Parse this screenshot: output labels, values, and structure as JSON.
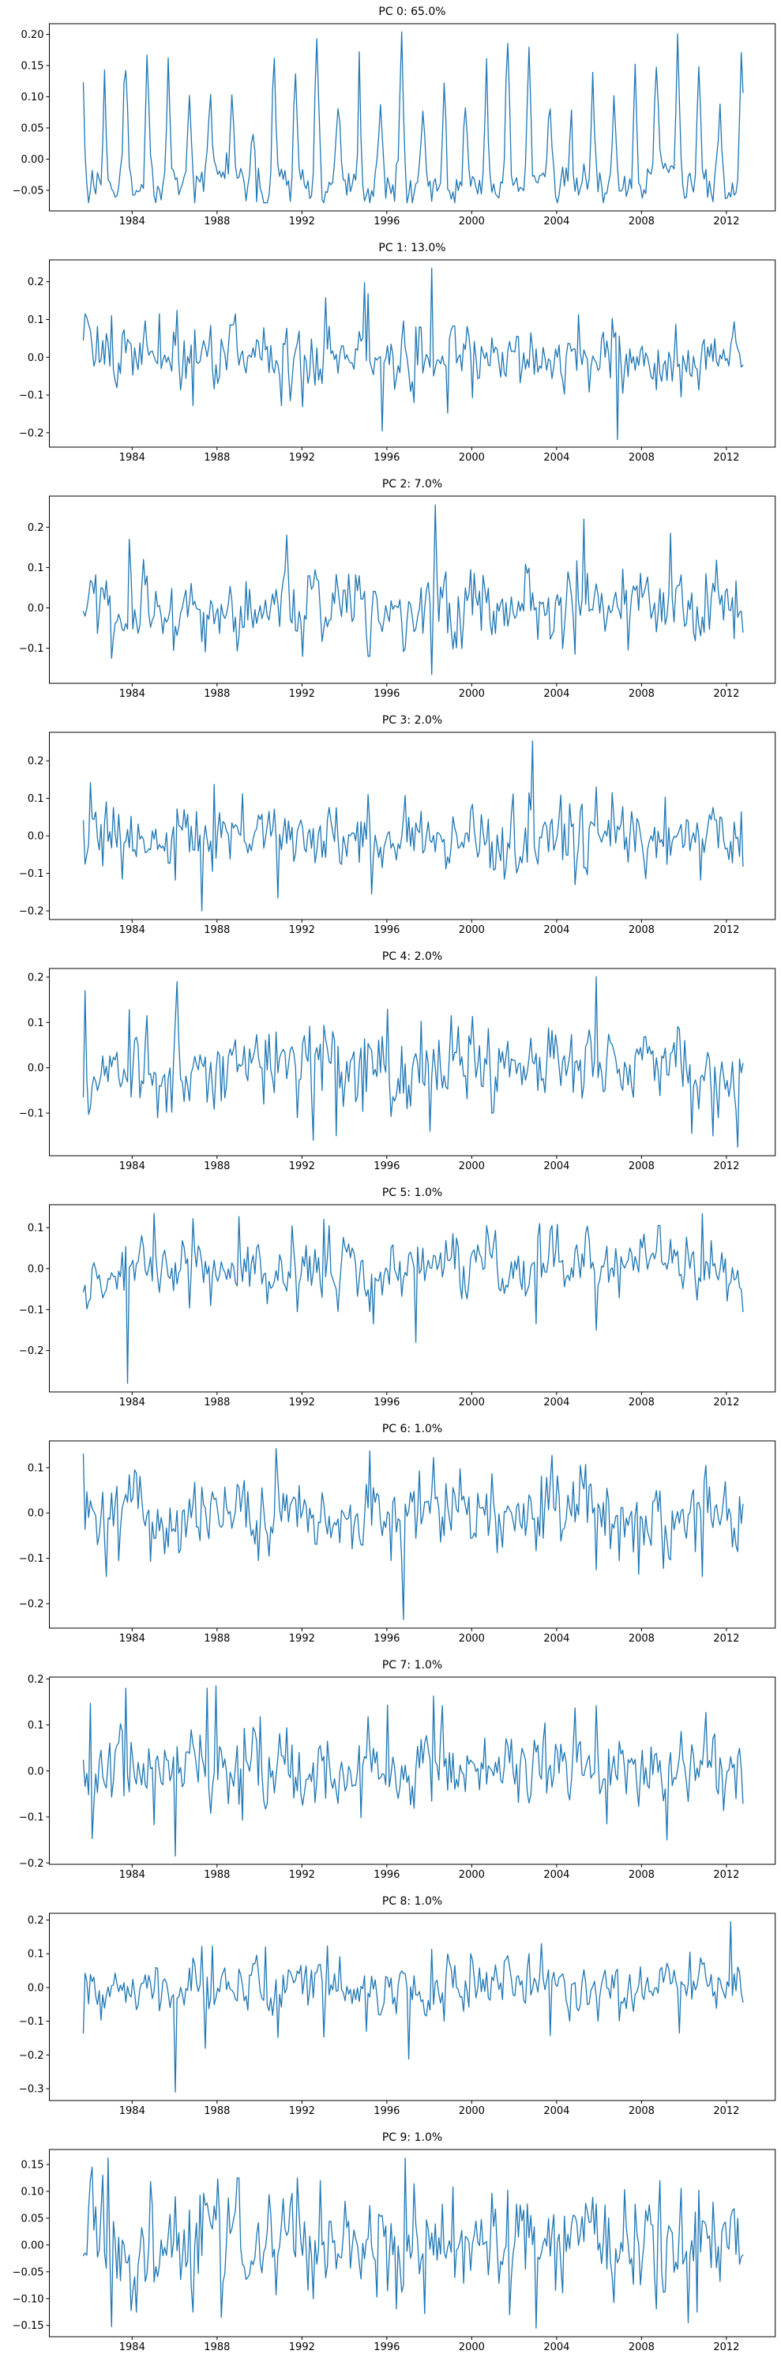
{
  "figure": {
    "background": "#ffffff",
    "line_color": "#1f77b4",
    "x_tick_labels": [
      "1984",
      "1988",
      "1992",
      "1996",
      "2000",
      "2004",
      "2008",
      "2012"
    ]
  },
  "chart_data": [
    {
      "type": "line",
      "title": "PC 0: 65.0%",
      "series_name": "PC 0",
      "explained_variance_pct": 65.0,
      "line_color": "#1f77b4",
      "x_start": 1981.7,
      "x_end": 2012.75,
      "xlim": [
        1980.1,
        2014.3
      ],
      "ylim": [
        -0.083,
        0.217
      ],
      "x_ticks": [
        1984,
        1988,
        1992,
        1996,
        2000,
        2004,
        2008,
        2012
      ],
      "y_ticks": [
        0.2,
        0.15,
        0.1,
        0.05,
        0.0,
        -0.05
      ],
      "y_tick_decimals": 2,
      "generator": {
        "kind": "seasonal",
        "seed": 7,
        "base": -0.045,
        "amp_min": 0.09,
        "amp_max": 0.25,
        "peak_phase": 0.7,
        "peak_sharpness": 4,
        "noise_std": 0.018,
        "noise_rho": 0.35,
        "clip_low": -0.07,
        "clip_high": 0.205,
        "spikes": [
          {
            "x": 1996.7,
            "y": 0.204
          },
          {
            "x": 1994.7,
            "y": 0.172
          },
          {
            "x": 1985.7,
            "y": 0.162
          },
          {
            "x": 2010.7,
            "y": 0.148
          },
          {
            "x": 1982.7,
            "y": 0.143
          },
          {
            "x": 2005.7,
            "y": 0.139
          },
          {
            "x": 1983.7,
            "y": 0.142
          }
        ]
      }
    },
    {
      "type": "line",
      "title": "PC 1: 13.0%",
      "series_name": "PC 1",
      "explained_variance_pct": 13.0,
      "line_color": "#1f77b4",
      "x_start": 1981.7,
      "x_end": 2012.75,
      "xlim": [
        1980.1,
        2014.3
      ],
      "ylim": [
        -0.238,
        0.258
      ],
      "x_ticks": [
        1984,
        1988,
        1992,
        1996,
        2000,
        2004,
        2008,
        2012
      ],
      "y_ticks": [
        0.2,
        0.1,
        0.0,
        -0.1,
        -0.2
      ],
      "y_tick_decimals": 1,
      "generator": {
        "kind": "noise",
        "seed": 11,
        "noise_std": 0.04,
        "noise_rho": 0.3,
        "clip_low": -0.115,
        "clip_high": 0.115,
        "spikes": [
          {
            "x": 1983.0,
            "y": 0.11
          },
          {
            "x": 1986.1,
            "y": 0.124
          },
          {
            "x": 1991.05,
            "y": 0.193
          },
          {
            "x": 1993.1,
            "y": 0.158
          },
          {
            "x": 1994.95,
            "y": 0.198
          },
          {
            "x": 1995.15,
            "y": 0.168
          },
          {
            "x": 1998.1,
            "y": 0.236
          },
          {
            "x": 2005.0,
            "y": 0.113
          },
          {
            "x": 2006.6,
            "y": 0.103
          },
          {
            "x": 1986.9,
            "y": -0.128
          },
          {
            "x": 1991.0,
            "y": -0.128
          },
          {
            "x": 1992.05,
            "y": -0.131
          },
          {
            "x": 1995.8,
            "y": -0.195
          },
          {
            "x": 1997.3,
            "y": -0.12
          },
          {
            "x": 1998.9,
            "y": -0.148
          },
          {
            "x": 2000.0,
            "y": -0.107
          },
          {
            "x": 2006.9,
            "y": -0.218
          },
          {
            "x": 2009.9,
            "y": -0.105
          }
        ]
      }
    },
    {
      "type": "line",
      "title": "PC 2: 7.0%",
      "series_name": "PC 2",
      "explained_variance_pct": 7.0,
      "line_color": "#1f77b4",
      "x_start": 1981.7,
      "x_end": 2012.75,
      "xlim": [
        1980.1,
        2014.3
      ],
      "ylim": [
        -0.187,
        0.277
      ],
      "x_ticks": [
        1984,
        1988,
        1992,
        1996,
        2000,
        2004,
        2008,
        2012
      ],
      "y_ticks": [
        0.2,
        0.1,
        0.0,
        -0.1
      ],
      "y_tick_decimals": 1,
      "generator": {
        "kind": "noise",
        "seed": 12,
        "noise_std": 0.045,
        "noise_rho": 0.3,
        "clip_low": -0.12,
        "clip_high": 0.12,
        "spikes": [
          {
            "x": 1983.9,
            "y": 0.17
          },
          {
            "x": 1991.3,
            "y": 0.18
          },
          {
            "x": 1998.3,
            "y": 0.255
          },
          {
            "x": 2005.3,
            "y": 0.22
          },
          {
            "x": 2009.4,
            "y": 0.185
          },
          {
            "x": 2011.5,
            "y": 0.118
          },
          {
            "x": 1983.0,
            "y": -0.125
          },
          {
            "x": 1992.0,
            "y": -0.12
          },
          {
            "x": 1998.15,
            "y": -0.165
          },
          {
            "x": 2004.9,
            "y": -0.115
          }
        ]
      }
    },
    {
      "type": "line",
      "title": "PC 3: 2.0%",
      "series_name": "PC 3",
      "explained_variance_pct": 2.0,
      "line_color": "#1f77b4",
      "x_start": 1981.7,
      "x_end": 2012.75,
      "xlim": [
        1980.1,
        2014.3
      ],
      "ylim": [
        -0.223,
        0.276
      ],
      "x_ticks": [
        1984,
        1988,
        1992,
        1996,
        2000,
        2004,
        2008,
        2012
      ],
      "y_ticks": [
        0.2,
        0.1,
        0.0,
        -0.1,
        -0.2
      ],
      "y_tick_decimals": 1,
      "generator": {
        "kind": "noise",
        "seed": 13,
        "noise_std": 0.045,
        "noise_rho": 0.25,
        "clip_low": -0.115,
        "clip_high": 0.115,
        "spikes": [
          {
            "x": 1982.0,
            "y": 0.142
          },
          {
            "x": 1987.9,
            "y": 0.137
          },
          {
            "x": 1989.2,
            "y": 0.112
          },
          {
            "x": 1995.1,
            "y": 0.11
          },
          {
            "x": 1996.9,
            "y": 0.108
          },
          {
            "x": 2002.9,
            "y": 0.253
          },
          {
            "x": 2005.9,
            "y": 0.13
          },
          {
            "x": 2009.1,
            "y": 0.103
          },
          {
            "x": 1987.3,
            "y": -0.2
          },
          {
            "x": 1990.9,
            "y": -0.165
          },
          {
            "x": 1995.3,
            "y": -0.155
          },
          {
            "x": 2004.9,
            "y": -0.13
          },
          {
            "x": 1983.5,
            "y": -0.115
          },
          {
            "x": 1986.0,
            "y": -0.118
          },
          {
            "x": 2010.8,
            "y": -0.118
          }
        ]
      }
    },
    {
      "type": "line",
      "title": "PC 4: 2.0%",
      "series_name": "PC 4",
      "explained_variance_pct": 2.0,
      "line_color": "#1f77b4",
      "x_start": 1981.7,
      "x_end": 2012.75,
      "xlim": [
        1980.1,
        2014.3
      ],
      "ylim": [
        -0.194,
        0.219
      ],
      "x_ticks": [
        1984,
        1988,
        1992,
        1996,
        2000,
        2004,
        2008,
        2012
      ],
      "y_ticks": [
        0.2,
        0.1,
        0.0,
        -0.1
      ],
      "y_tick_decimals": 1,
      "generator": {
        "kind": "noise",
        "seed": 14,
        "noise_std": 0.045,
        "noise_rho": 0.3,
        "clip_low": -0.11,
        "clip_high": 0.11,
        "spikes": [
          {
            "x": 1981.75,
            "y": 0.17
          },
          {
            "x": 1983.9,
            "y": 0.128
          },
          {
            "x": 1984.7,
            "y": 0.115
          },
          {
            "x": 1986.1,
            "y": 0.19
          },
          {
            "x": 1996.0,
            "y": 0.129
          },
          {
            "x": 1999.0,
            "y": 0.115
          },
          {
            "x": 2000.0,
            "y": 0.113
          },
          {
            "x": 2005.9,
            "y": 0.201
          },
          {
            "x": 1992.5,
            "y": -0.16
          },
          {
            "x": 1993.6,
            "y": -0.15
          },
          {
            "x": 1998.0,
            "y": -0.14
          },
          {
            "x": 2010.4,
            "y": -0.145
          },
          {
            "x": 2011.4,
            "y": -0.15
          },
          {
            "x": 2012.5,
            "y": -0.175
          }
        ]
      }
    },
    {
      "type": "line",
      "title": "PC 5: 1.0%",
      "series_name": "PC 5",
      "explained_variance_pct": 1.0,
      "line_color": "#1f77b4",
      "x_start": 1981.7,
      "x_end": 2012.75,
      "xlim": [
        1980.1,
        2014.3
      ],
      "ylim": [
        -0.301,
        0.156
      ],
      "x_ticks": [
        1984,
        1988,
        1992,
        1996,
        2000,
        2004,
        2008,
        2012
      ],
      "y_ticks": [
        0.1,
        0.0,
        -0.1,
        -0.2
      ],
      "y_tick_decimals": 1,
      "generator": {
        "kind": "noise",
        "seed": 15,
        "noise_std": 0.042,
        "noise_rho": 0.35,
        "clip_low": -0.105,
        "clip_high": 0.105,
        "spikes": [
          {
            "x": 1983.8,
            "y": -0.28
          },
          {
            "x": 1997.4,
            "y": -0.18
          },
          {
            "x": 2005.9,
            "y": -0.15
          },
          {
            "x": 2003.0,
            "y": -0.135
          },
          {
            "x": 1995.4,
            "y": -0.135
          },
          {
            "x": 1985.0,
            "y": 0.135
          },
          {
            "x": 1989.0,
            "y": 0.127
          },
          {
            "x": 1986.9,
            "y": 0.122
          },
          {
            "x": 2003.2,
            "y": 0.11
          },
          {
            "x": 2010.9,
            "y": 0.134
          },
          {
            "x": 2004.0,
            "y": 0.108
          },
          {
            "x": 1993.0,
            "y": 0.12
          },
          {
            "x": 1993.3,
            "y": 0.105
          }
        ]
      }
    },
    {
      "type": "line",
      "title": "PC 6: 1.0%",
      "series_name": "PC 6",
      "explained_variance_pct": 1.0,
      "line_color": "#1f77b4",
      "x_start": 1981.7,
      "x_end": 2012.75,
      "xlim": [
        1980.1,
        2014.3
      ],
      "ylim": [
        -0.254,
        0.159
      ],
      "x_ticks": [
        1984,
        1988,
        1992,
        1996,
        2000,
        2004,
        2008,
        2012
      ],
      "y_ticks": [
        0.1,
        0.0,
        -0.1,
        -0.2
      ],
      "y_tick_decimals": 1,
      "generator": {
        "kind": "noise",
        "seed": 16,
        "noise_std": 0.045,
        "noise_rho": 0.35,
        "clip_low": -0.105,
        "clip_high": 0.105,
        "spikes": [
          {
            "x": 1981.7,
            "y": 0.13
          },
          {
            "x": 1990.8,
            "y": 0.142
          },
          {
            "x": 1995.2,
            "y": 0.137
          },
          {
            "x": 1998.2,
            "y": 0.122
          },
          {
            "x": 2003.8,
            "y": 0.127
          },
          {
            "x": 2005.4,
            "y": 0.107
          },
          {
            "x": 2011.0,
            "y": 0.105
          },
          {
            "x": 1996.8,
            "y": -0.235
          },
          {
            "x": 1982.8,
            "y": -0.14
          },
          {
            "x": 2007.9,
            "y": -0.135
          },
          {
            "x": 2010.9,
            "y": -0.14
          },
          {
            "x": 1984.9,
            "y": -0.107
          },
          {
            "x": 2005.9,
            "y": -0.125
          },
          {
            "x": 2009.0,
            "y": -0.122
          }
        ]
      }
    },
    {
      "type": "line",
      "title": "PC 7: 1.0%",
      "series_name": "PC 7",
      "explained_variance_pct": 1.0,
      "line_color": "#1f77b4",
      "x_start": 1981.7,
      "x_end": 2012.75,
      "xlim": [
        1980.1,
        2014.3
      ],
      "ylim": [
        -0.203,
        0.204
      ],
      "x_ticks": [
        1984,
        1988,
        1992,
        1996,
        2000,
        2004,
        2008,
        2012
      ],
      "y_ticks": [
        0.2,
        0.1,
        0.0,
        -0.1,
        -0.2
      ],
      "y_tick_decimals": 1,
      "generator": {
        "kind": "noise",
        "seed": 17,
        "noise_std": 0.042,
        "noise_rho": 0.3,
        "clip_low": -0.105,
        "clip_high": 0.105,
        "spikes": [
          {
            "x": 1982.0,
            "y": 0.147
          },
          {
            "x": 1983.7,
            "y": 0.18
          },
          {
            "x": 1987.5,
            "y": 0.18
          },
          {
            "x": 1987.95,
            "y": 0.185
          },
          {
            "x": 1990.0,
            "y": 0.118
          },
          {
            "x": 1995.1,
            "y": 0.118
          },
          {
            "x": 1996.0,
            "y": 0.143
          },
          {
            "x": 1998.2,
            "y": 0.163
          },
          {
            "x": 1998.6,
            "y": 0.142
          },
          {
            "x": 2004.9,
            "y": 0.137
          },
          {
            "x": 2005.9,
            "y": 0.142
          },
          {
            "x": 2011.0,
            "y": 0.127
          },
          {
            "x": 1986.0,
            "y": -0.185
          },
          {
            "x": 1982.1,
            "y": -0.147
          },
          {
            "x": 1985.0,
            "y": -0.117
          },
          {
            "x": 2009.2,
            "y": -0.15
          },
          {
            "x": 2006.4,
            "y": -0.115
          },
          {
            "x": 1989.2,
            "y": -0.107
          }
        ]
      }
    },
    {
      "type": "line",
      "title": "PC 8: 1.0%",
      "series_name": "PC 8",
      "explained_variance_pct": 1.0,
      "line_color": "#1f77b4",
      "x_start": 1981.7,
      "x_end": 2012.75,
      "xlim": [
        1980.1,
        2014.3
      ],
      "ylim": [
        -0.335,
        0.22
      ],
      "x_ticks": [
        1984,
        1988,
        1992,
        1996,
        2000,
        2004,
        2008,
        2012
      ],
      "y_ticks": [
        0.2,
        0.1,
        0.0,
        -0.1,
        -0.2,
        -0.3
      ],
      "y_tick_decimals": 1,
      "generator": {
        "kind": "noise",
        "seed": 18,
        "noise_std": 0.04,
        "noise_rho": 0.3,
        "clip_low": -0.1,
        "clip_high": 0.1,
        "spikes": [
          {
            "x": 1981.7,
            "y": -0.135
          },
          {
            "x": 1986.0,
            "y": -0.31
          },
          {
            "x": 1987.45,
            "y": -0.18
          },
          {
            "x": 1990.9,
            "y": -0.148
          },
          {
            "x": 1993.0,
            "y": -0.147
          },
          {
            "x": 1995.0,
            "y": -0.13
          },
          {
            "x": 1997.0,
            "y": -0.212
          },
          {
            "x": 2003.7,
            "y": -0.142
          },
          {
            "x": 2009.8,
            "y": -0.135
          },
          {
            "x": 1987.3,
            "y": 0.122
          },
          {
            "x": 1987.8,
            "y": 0.123
          },
          {
            "x": 1990.3,
            "y": 0.12
          },
          {
            "x": 1993.2,
            "y": 0.123
          },
          {
            "x": 1998.1,
            "y": 0.113
          },
          {
            "x": 2003.3,
            "y": 0.13
          },
          {
            "x": 2010.3,
            "y": 0.105
          },
          {
            "x": 2012.2,
            "y": 0.195
          }
        ]
      }
    },
    {
      "type": "line",
      "title": "PC 9: 1.0%",
      "series_name": "PC 9",
      "explained_variance_pct": 1.0,
      "line_color": "#1f77b4",
      "x_start": 1981.7,
      "x_end": 2012.75,
      "xlim": [
        1980.1,
        2014.3
      ],
      "ylim": [
        -0.171,
        0.178
      ],
      "x_ticks": [
        1984,
        1988,
        1992,
        1996,
        2000,
        2004,
        2008,
        2012
      ],
      "y_ticks": [
        0.15,
        0.1,
        0.05,
        0.0,
        -0.05,
        -0.1,
        -0.15
      ],
      "y_tick_decimals": 2,
      "generator": {
        "kind": "noise",
        "seed": 19,
        "noise_std": 0.05,
        "noise_rho": 0.35,
        "clip_low": -0.125,
        "clip_high": 0.125,
        "spikes": [
          {
            "x": 1982.1,
            "y": 0.145
          },
          {
            "x": 1982.6,
            "y": 0.13
          },
          {
            "x": 1982.9,
            "y": 0.162
          },
          {
            "x": 1984.9,
            "y": 0.118
          },
          {
            "x": 1988.0,
            "y": 0.123
          },
          {
            "x": 1992.9,
            "y": 0.12
          },
          {
            "x": 1996.9,
            "y": 0.162
          },
          {
            "x": 1999.1,
            "y": 0.108
          },
          {
            "x": 2008.9,
            "y": 0.12
          },
          {
            "x": 1983.0,
            "y": -0.152
          },
          {
            "x": 1988.2,
            "y": -0.135
          },
          {
            "x": 1997.8,
            "y": -0.128
          },
          {
            "x": 2001.8,
            "y": -0.13
          },
          {
            "x": 2003.0,
            "y": -0.155
          },
          {
            "x": 2010.2,
            "y": -0.145
          },
          {
            "x": 2010.6,
            "y": -0.125
          }
        ]
      }
    }
  ]
}
